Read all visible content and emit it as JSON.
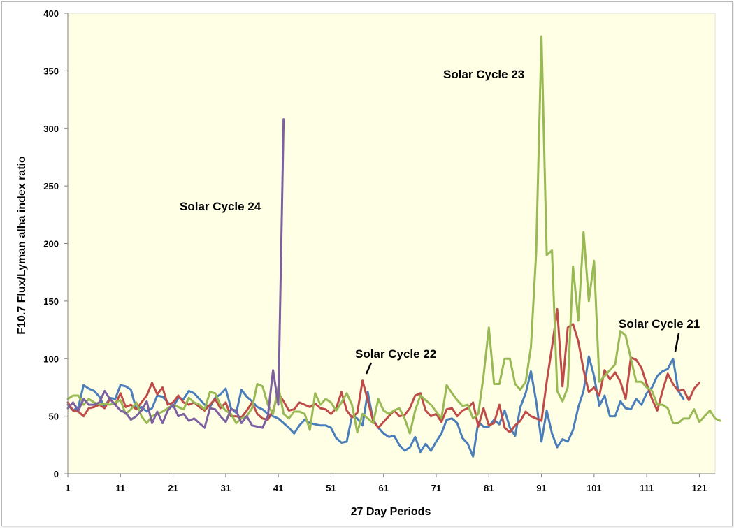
{
  "chart_data": {
    "type": "line",
    "title": "",
    "xlabel": "27 Day Periods",
    "ylabel": "F10.7 Flux/Lyman alha index ratio",
    "xlim": [
      1,
      124
    ],
    "ylim": [
      0,
      400
    ],
    "xticks": [
      1,
      11,
      21,
      31,
      41,
      51,
      61,
      71,
      81,
      91,
      101,
      111,
      121
    ],
    "yticks": [
      0,
      50,
      100,
      150,
      200,
      250,
      300,
      350,
      400
    ],
    "grid": false,
    "legend": "none",
    "plot_background": "#FFFFE6",
    "series": [
      {
        "color": "#4A7EBB",
        "x_start": 1,
        "values": [
          60,
          55,
          58,
          77,
          74,
          72,
          67,
          58,
          66,
          65,
          77,
          76,
          73,
          56,
          58,
          54,
          57,
          68,
          67,
          62,
          58,
          66,
          65,
          72,
          70,
          65,
          60,
          58,
          66,
          69,
          74,
          57,
          53,
          73,
          67,
          63,
          58,
          56,
          52,
          50,
          48,
          44,
          40,
          35,
          42,
          47,
          44,
          43,
          42,
          42,
          40,
          31,
          27,
          28,
          50,
          48,
          42,
          71,
          47,
          40,
          35,
          32,
          33,
          25,
          20,
          23,
          32,
          19,
          26,
          20,
          28,
          35,
          47,
          48,
          44,
          31,
          26,
          15,
          45,
          41,
          41,
          47,
          43,
          55,
          40,
          33,
          58,
          70,
          89,
          63,
          28,
          55,
          35,
          23,
          30,
          28,
          38,
          58,
          72,
          102,
          85,
          59,
          68,
          50,
          50,
          63,
          57,
          56,
          65,
          60,
          70,
          75,
          85,
          89,
          91,
          100,
          72,
          65
        ]
      },
      {
        "color": "#BE4B48",
        "x_start": 1,
        "values": [
          62,
          55,
          54,
          50,
          57,
          58,
          60,
          57,
          65,
          60,
          70,
          58,
          60,
          56,
          62,
          68,
          79,
          69,
          75,
          60,
          62,
          68,
          62,
          60,
          62,
          58,
          55,
          60,
          65,
          57,
          62,
          50,
          50,
          49,
          55,
          62,
          52,
          48,
          47,
          55,
          70,
          63,
          55,
          56,
          62,
          60,
          58,
          61,
          57,
          56,
          52,
          57,
          71,
          55,
          49,
          53,
          81,
          64,
          46,
          40,
          45,
          50,
          55,
          50,
          51,
          57,
          68,
          70,
          55,
          50,
          52,
          45,
          56,
          57,
          50,
          55,
          57,
          62,
          41,
          57,
          42,
          44,
          60,
          40,
          36,
          42,
          46,
          54,
          50,
          48,
          46,
          80,
          110,
          143,
          76,
          127,
          130,
          115,
          90,
          71,
          75,
          68,
          90,
          82,
          88,
          80,
          65,
          101,
          99,
          92,
          78,
          65,
          55,
          72,
          87,
          78,
          72,
          73,
          64,
          74,
          79
        ]
      },
      {
        "color": "#98B954",
        "x_start": 1,
        "values": [
          65,
          68,
          68,
          60,
          65,
          62,
          60,
          61,
          60,
          62,
          64,
          52,
          56,
          62,
          50,
          44,
          50,
          52,
          54,
          57,
          60,
          58,
          56,
          66,
          62,
          60,
          56,
          71,
          70,
          60,
          55,
          52,
          44,
          48,
          50,
          57,
          78,
          76,
          60,
          52,
          76,
          52,
          48,
          54,
          54,
          52,
          38,
          70,
          60,
          65,
          62,
          55,
          62,
          70,
          60,
          36,
          52,
          48,
          44,
          65,
          55,
          52,
          55,
          57,
          48,
          35,
          55,
          68,
          64,
          60,
          54,
          48,
          77,
          70,
          64,
          59,
          60,
          48,
          52,
          85,
          127,
          78,
          78,
          100,
          100,
          78,
          73,
          80,
          110,
          192,
          380,
          190,
          194,
          72,
          63,
          75,
          180,
          133,
          210,
          150,
          185,
          80,
          85,
          90,
          95,
          124,
          120,
          100,
          80,
          80,
          75,
          72,
          60,
          60,
          57,
          44,
          44,
          48,
          48,
          56,
          45,
          50,
          55,
          48,
          46
        ]
      },
      {
        "color": "#7D60A0",
        "x_start": 1,
        "values": [
          57,
          62,
          55,
          65,
          60,
          60,
          62,
          72,
          65,
          60,
          55,
          53,
          47,
          50,
          55,
          63,
          44,
          54,
          44,
          55,
          60,
          50,
          52,
          46,
          48,
          44,
          40,
          57,
          56,
          50,
          45,
          56,
          55,
          44,
          50,
          42,
          41,
          40,
          50,
          90,
          60,
          308
        ]
      }
    ],
    "annotations": [
      {
        "text": "Solar  Cycle 24"
      },
      {
        "text": "Solar  Cycle 23"
      },
      {
        "text": "Solar  Cycle 22"
      },
      {
        "text": "Solar  Cycle 21"
      }
    ]
  }
}
